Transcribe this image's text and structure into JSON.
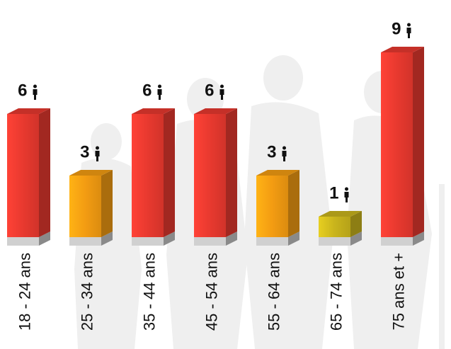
{
  "chart_data": {
    "type": "bar3d",
    "categories": [
      "18 - 24 ans",
      "25 - 34 ans",
      "35 - 44 ans",
      "45 - 54 ans",
      "55 - 64 ans",
      "65 - 74 ans",
      "75 ans et +"
    ],
    "values": [
      6,
      3,
      6,
      6,
      3,
      1,
      9
    ],
    "colors": [
      "#e8392f",
      "#f39c12",
      "#e8392f",
      "#e8392f",
      "#f39c12",
      "#c9b41c",
      "#e8392f"
    ]
  }
}
